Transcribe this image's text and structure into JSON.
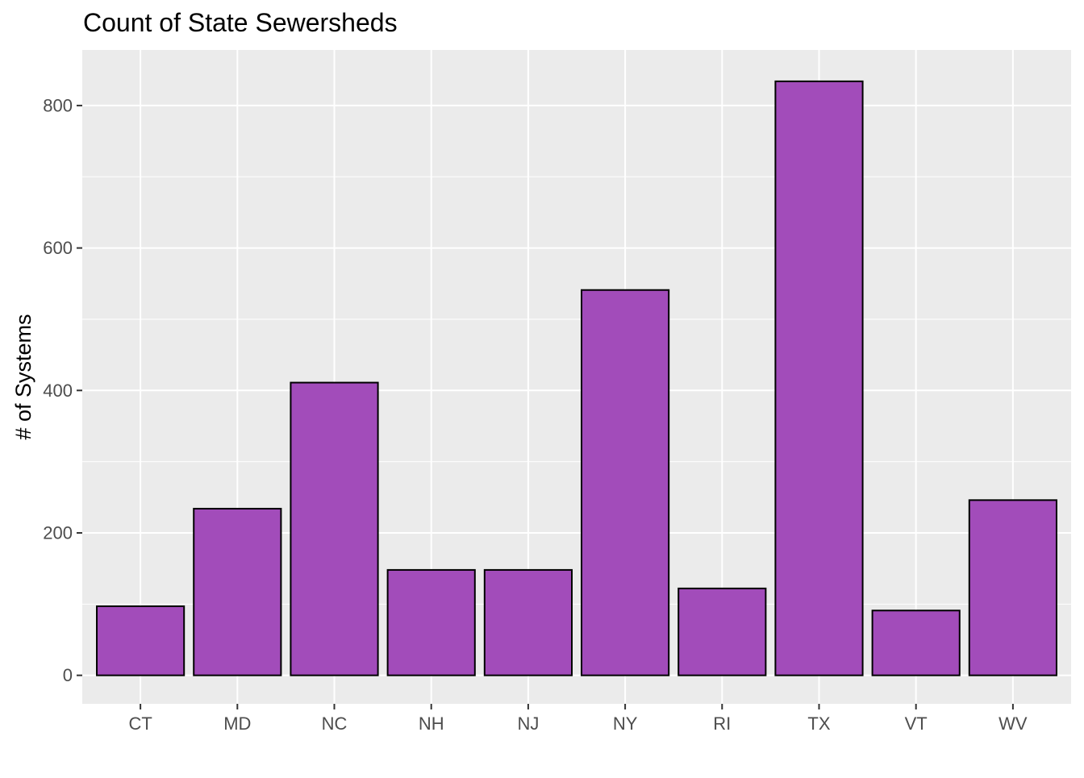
{
  "chart_data": {
    "type": "bar",
    "title": "Count of State Sewersheds",
    "xlabel": "",
    "ylabel": "# of Systems",
    "categories": [
      "CT",
      "MD",
      "NC",
      "NH",
      "NJ",
      "NY",
      "RI",
      "TX",
      "VT",
      "WV"
    ],
    "values": [
      97,
      234,
      411,
      148,
      148,
      541,
      122,
      834,
      91,
      246
    ],
    "ylim": [
      -40,
      878
    ],
    "yticks": [
      0,
      200,
      400,
      600,
      800
    ],
    "grid": true,
    "legend": "none",
    "colors": {
      "bar_fill": "#A24CBA",
      "bar_stroke": "#000000",
      "panel_background": "#EBEBEB",
      "grid_line": "#FFFFFF",
      "tick_label": "#4D4D4D"
    }
  }
}
